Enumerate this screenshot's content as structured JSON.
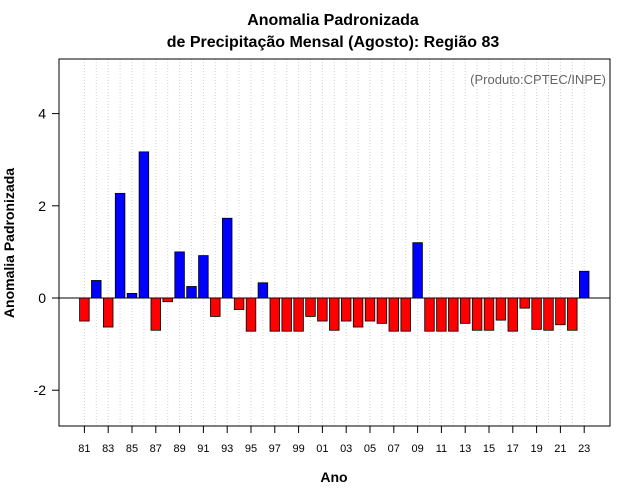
{
  "chart_data": {
    "type": "bar",
    "title": "Anomalia Padronizada",
    "subtitle": "de Precipitação Mensal (Agosto): Região 83",
    "xlabel": "Ano",
    "ylabel": "Anomalia Padronizada",
    "annotation": "(Produto:CPTEC/INPE)",
    "ylim": [
      -2.75,
      5.2
    ],
    "yticks": [
      -2,
      0,
      2,
      4
    ],
    "xtick_labels": [
      "81",
      "83",
      "85",
      "87",
      "89",
      "91",
      "93",
      "95",
      "97",
      "99",
      "01",
      "03",
      "05",
      "07",
      "09",
      "11",
      "13",
      "15",
      "17",
      "19",
      "21",
      "23"
    ],
    "grid": "vertical dotted",
    "positive_color": "#0000ff",
    "negative_color": "#ff0000",
    "categories": [
      "1981",
      "1982",
      "1983",
      "1984",
      "1985",
      "1986",
      "1987",
      "1988",
      "1989",
      "1990",
      "1991",
      "1992",
      "1993",
      "1994",
      "1995",
      "1996",
      "1997",
      "1998",
      "1999",
      "2000",
      "2001",
      "2002",
      "2003",
      "2004",
      "2005",
      "2006",
      "2007",
      "2008",
      "2009",
      "2010",
      "2011",
      "2012",
      "2013",
      "2014",
      "2015",
      "2016",
      "2017",
      "2018",
      "2019",
      "2020",
      "2021",
      "2022",
      "2023"
    ],
    "values": [
      -0.5,
      0.38,
      -0.63,
      2.27,
      0.1,
      3.17,
      -0.7,
      -0.08,
      1.0,
      0.25,
      0.92,
      -0.4,
      1.73,
      -0.25,
      -0.72,
      0.33,
      -0.72,
      -0.72,
      -0.72,
      -0.4,
      -0.5,
      -0.7,
      -0.5,
      -0.63,
      -0.5,
      -0.55,
      -0.72,
      -0.72,
      1.2,
      -0.72,
      -0.72,
      -0.72,
      -0.55,
      -0.7,
      -0.7,
      -0.48,
      -0.72,
      -0.22,
      -0.68,
      -0.7,
      -0.58,
      -0.7,
      0.58
    ]
  }
}
